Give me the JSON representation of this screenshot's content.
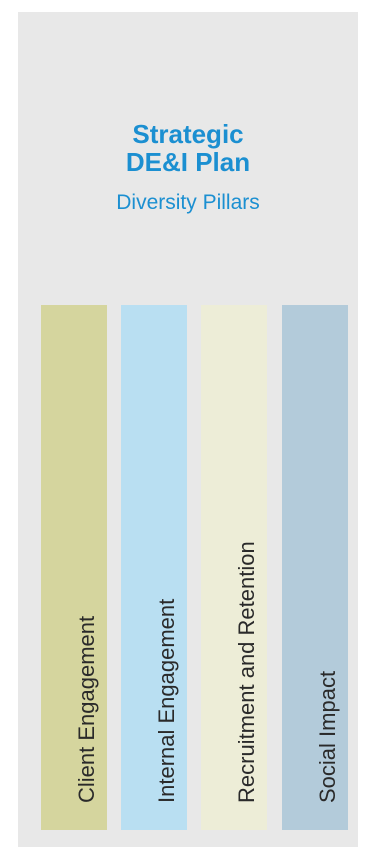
{
  "diagram": {
    "title_lines": [
      "Strategic",
      "DE&I Plan"
    ],
    "subtitle": "Diversity Pillars",
    "pillars": [
      {
        "label": "Client Engagement",
        "color": "#d5d59e"
      },
      {
        "label": "Internal Engagement",
        "color": "#b9dff2"
      },
      {
        "label": "Recruitment and Retention",
        "color": "#ededd7"
      },
      {
        "label": "Social Impact",
        "color": "#b3cbda"
      }
    ],
    "colors": {
      "title": "#1b8fd1",
      "panel": "#e8e8e8"
    }
  }
}
